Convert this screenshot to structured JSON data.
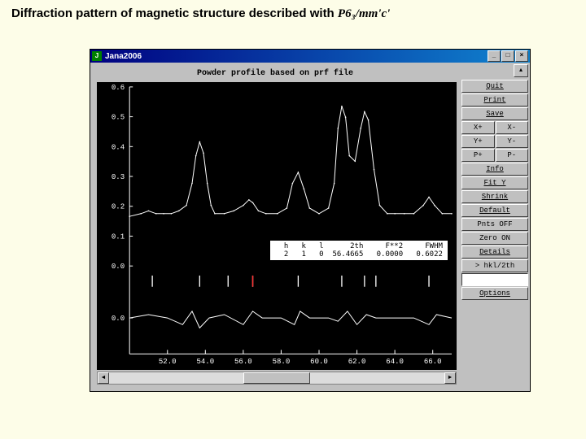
{
  "page": {
    "title_prefix": "Diffraction pattern of magnetic structure described with",
    "formula": "P6₃/mm'c'"
  },
  "window": {
    "title": "Jana2006",
    "plot_title": "Powder profile based on prf file"
  },
  "sidebar": {
    "quit": "Quit",
    "print": "Print",
    "save": "Save",
    "xplus": "X+",
    "xminus": "X-",
    "yplus": "Y+",
    "yminus": "Y-",
    "pplus": "P+",
    "pminus": "P-",
    "info": "Info",
    "fity": "Fit Y",
    "shrink": "Shrink",
    "default": "Default",
    "pntsoff": "Pnts OFF",
    "zeroon": "Zero ON",
    "details": "Details",
    "hkl2th": "> hkl/2th",
    "options": "Options"
  },
  "databox": {
    "headers": [
      "h",
      "k",
      "l",
      "2th",
      "F**2",
      "FWHM"
    ],
    "values": [
      "2",
      "1",
      "0",
      "56.4665",
      "0.0000",
      "0.6022"
    ]
  },
  "chart": {
    "type": "line",
    "background": "#000000",
    "line_color": "#ffffff",
    "tick_color": "#ffffff",
    "tick_red": "#ff3030",
    "text_color": "#ffffff",
    "font_family": "Courier New",
    "font_size": 9,
    "xlim": [
      50,
      67
    ],
    "xticks": [
      52.0,
      54.0,
      56.0,
      58.0,
      60.0,
      62.0,
      64.0,
      66.0
    ],
    "y_labels_top": [
      "0.6",
      "0.5",
      "0.4",
      "0.3",
      "0.2",
      "0.1",
      "0.0"
    ],
    "y_labels_bottom": [
      "0.0"
    ],
    "profile_points": [
      [
        50.0,
        0.18
      ],
      [
        50.6,
        0.19
      ],
      [
        51.0,
        0.2
      ],
      [
        51.4,
        0.19
      ],
      [
        51.8,
        0.19
      ],
      [
        52.2,
        0.19
      ],
      [
        52.6,
        0.2
      ],
      [
        53.0,
        0.22
      ],
      [
        53.3,
        0.3
      ],
      [
        53.5,
        0.4
      ],
      [
        53.7,
        0.45
      ],
      [
        53.9,
        0.41
      ],
      [
        54.1,
        0.3
      ],
      [
        54.3,
        0.22
      ],
      [
        54.5,
        0.19
      ],
      [
        55.0,
        0.19
      ],
      [
        55.5,
        0.2
      ],
      [
        56.0,
        0.22
      ],
      [
        56.3,
        0.24
      ],
      [
        56.5,
        0.23
      ],
      [
        56.8,
        0.2
      ],
      [
        57.2,
        0.19
      ],
      [
        57.8,
        0.19
      ],
      [
        58.3,
        0.21
      ],
      [
        58.6,
        0.3
      ],
      [
        58.9,
        0.34
      ],
      [
        59.2,
        0.28
      ],
      [
        59.5,
        0.21
      ],
      [
        60.0,
        0.19
      ],
      [
        60.5,
        0.21
      ],
      [
        60.8,
        0.3
      ],
      [
        61.0,
        0.5
      ],
      [
        61.2,
        0.58
      ],
      [
        61.4,
        0.54
      ],
      [
        61.6,
        0.4
      ],
      [
        61.9,
        0.38
      ],
      [
        62.2,
        0.5
      ],
      [
        62.4,
        0.56
      ],
      [
        62.6,
        0.53
      ],
      [
        62.9,
        0.35
      ],
      [
        63.2,
        0.22
      ],
      [
        63.6,
        0.19
      ],
      [
        64.0,
        0.19
      ],
      [
        64.5,
        0.19
      ],
      [
        65.0,
        0.19
      ],
      [
        65.5,
        0.22
      ],
      [
        65.8,
        0.25
      ],
      [
        66.1,
        0.22
      ],
      [
        66.5,
        0.19
      ],
      [
        67.0,
        0.19
      ]
    ],
    "profile_ymax": 0.65,
    "diff_points": [
      [
        50.0,
        0.0
      ],
      [
        51.0,
        0.01
      ],
      [
        52.0,
        0.0
      ],
      [
        52.8,
        -0.02
      ],
      [
        53.3,
        0.02
      ],
      [
        53.7,
        -0.03
      ],
      [
        54.2,
        0.0
      ],
      [
        55.0,
        0.01
      ],
      [
        56.0,
        -0.02
      ],
      [
        56.5,
        0.02
      ],
      [
        57.0,
        0.0
      ],
      [
        58.0,
        0.0
      ],
      [
        58.7,
        -0.02
      ],
      [
        59.0,
        0.02
      ],
      [
        59.5,
        0.0
      ],
      [
        60.5,
        0.0
      ],
      [
        61.0,
        -0.01
      ],
      [
        61.5,
        0.02
      ],
      [
        62.0,
        -0.02
      ],
      [
        62.5,
        0.01
      ],
      [
        63.0,
        0.0
      ],
      [
        64.0,
        0.0
      ],
      [
        65.0,
        0.0
      ],
      [
        65.8,
        -0.02
      ],
      [
        66.2,
        0.01
      ],
      [
        67.0,
        0.0
      ]
    ],
    "diff_range": 0.06,
    "ticks_white": [
      51.2,
      53.7,
      55.2,
      56.5,
      58.9,
      61.2,
      62.4,
      63.0,
      65.8
    ],
    "ticks_red": [
      56.5
    ]
  }
}
